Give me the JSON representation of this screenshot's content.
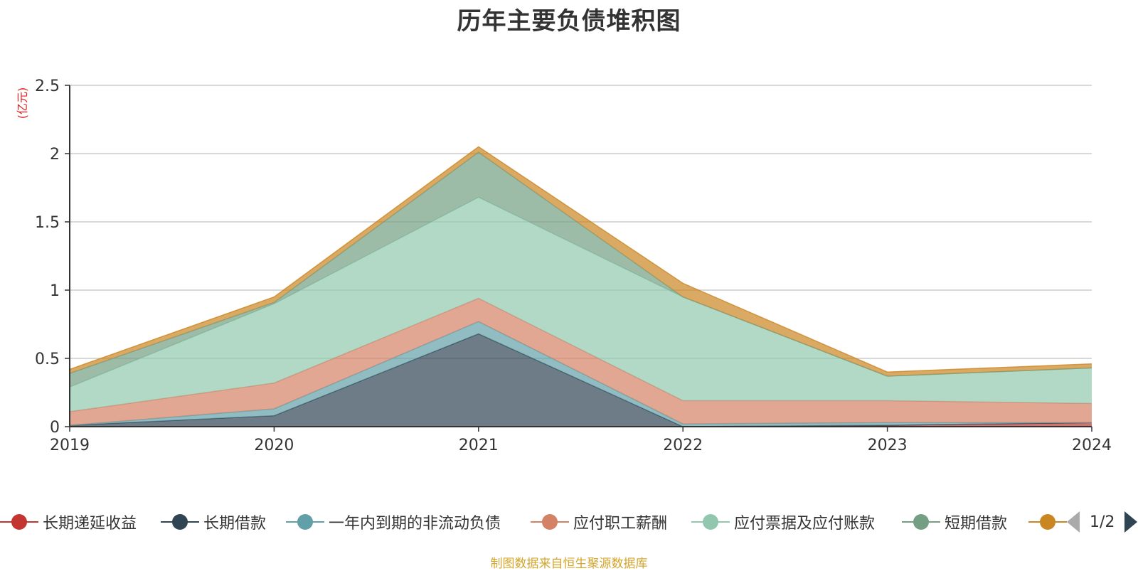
{
  "chart_data": {
    "type": "area",
    "stacked": true,
    "title": "历年主要负债堆积图",
    "unit_label": "(亿元)",
    "x": [
      "2019",
      "2020",
      "2021",
      "2022",
      "2023",
      "2024"
    ],
    "ylim": [
      0,
      2.5
    ],
    "y_ticks": [
      "0",
      "0.5",
      "1",
      "1.5",
      "2",
      "2.5"
    ],
    "grid": true,
    "legend_position": "bottom",
    "series": [
      {
        "name": "长期递延收益",
        "color": "#c23531",
        "values": [
          0.0,
          0.0,
          0.0,
          0.0,
          0.01,
          0.03
        ]
      },
      {
        "name": "长期借款",
        "color": "#2f4554",
        "values": [
          0.01,
          0.08,
          0.68,
          0.0,
          0.0,
          0.0
        ]
      },
      {
        "name": "一年内到期的非流动负债",
        "color": "#61a0a8",
        "values": [
          0.0,
          0.05,
          0.09,
          0.02,
          0.02,
          0.0
        ]
      },
      {
        "name": "应付职工薪酬",
        "color": "#d48265",
        "values": [
          0.1,
          0.19,
          0.17,
          0.17,
          0.16,
          0.14
        ]
      },
      {
        "name": "应付票据及应付账款",
        "color": "#91c7ae",
        "values": [
          0.18,
          0.58,
          0.74,
          0.76,
          0.18,
          0.26
        ]
      },
      {
        "name": "短期借款",
        "color": "#749f83",
        "values": [
          0.1,
          0.01,
          0.33,
          0.0,
          0.0,
          0.0
        ]
      },
      {
        "name": "",
        "color": "#ca8622",
        "values": [
          0.03,
          0.04,
          0.04,
          0.1,
          0.03,
          0.03
        ]
      }
    ]
  },
  "legend": {
    "page_indicator": "1/2"
  },
  "footer": {
    "source": "制图数据来自恒生聚源数据库"
  }
}
